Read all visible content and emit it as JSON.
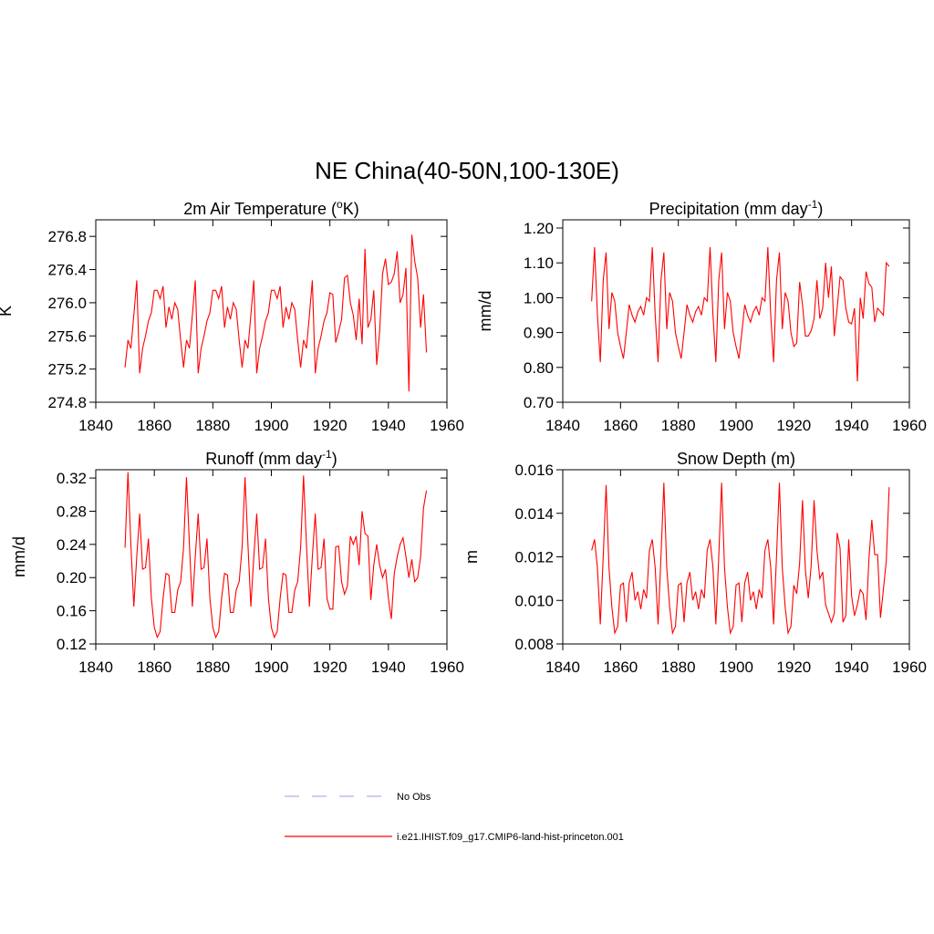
{
  "title": "NE China(40-50N,100-130E)",
  "legend": [
    {
      "name": "No Obs",
      "color": "#aab0f0",
      "style": "dashed"
    },
    {
      "name": "i.e21.IHIST.f09_g17.CMIP6-land-hist-princeton.001",
      "color": "#ff0000",
      "style": "solid"
    }
  ],
  "chart_data": [
    {
      "type": "line",
      "title": [
        "2m Air Temperature (",
        "o",
        "K)"
      ],
      "y_label": "K",
      "xlim": [
        1840,
        1960
      ],
      "xticks": [
        1840,
        1860,
        1880,
        1900,
        1920,
        1940,
        1960
      ],
      "ylim": [
        274.8,
        277.0
      ],
      "yticks": [
        274.8,
        275.2,
        275.6,
        {
          "value": 276.0,
          "label": "276.0"
        },
        276.4,
        276.8
      ],
      "x": [
        1850,
        1851,
        1852,
        1853,
        1854,
        1855,
        1856,
        1857,
        1858,
        1859,
        1860,
        1861,
        1862,
        1863,
        1864,
        1865,
        1866,
        1867,
        1868,
        1869,
        1870,
        1871,
        1872,
        1873,
        1874,
        1875,
        1876,
        1877,
        1878,
        1879,
        1880,
        1881,
        1882,
        1883,
        1884,
        1885,
        1886,
        1887,
        1888,
        1889,
        1890,
        1891,
        1892,
        1893,
        1894,
        1895,
        1896,
        1897,
        1898,
        1899,
        1900,
        1901,
        1902,
        1903,
        1904,
        1905,
        1906,
        1907,
        1908,
        1909,
        1910,
        1911,
        1912,
        1913,
        1914,
        1915,
        1916,
        1917,
        1918,
        1919,
        1920,
        1921,
        1922,
        1923,
        1924,
        1925,
        1926,
        1927,
        1928,
        1929,
        1930,
        1931,
        1932,
        1933,
        1934,
        1935,
        1936,
        1937,
        1938,
        1939,
        1940,
        1941,
        1942,
        1943,
        1944,
        1945,
        1946,
        1947,
        1948,
        1949,
        1950,
        1951,
        1952,
        1953
      ],
      "series": [
        {
          "color": "#ff0000",
          "values": [
            275.22,
            275.55,
            275.45,
            275.85,
            276.27,
            275.15,
            275.45,
            275.6,
            275.78,
            275.88,
            276.15,
            276.15,
            276.05,
            276.2,
            275.7,
            275.95,
            275.8,
            276.0,
            275.92,
            275.55,
            275.22,
            275.55,
            275.45,
            275.85,
            276.27,
            275.15,
            275.45,
            275.6,
            275.78,
            275.88,
            276.15,
            276.15,
            276.05,
            276.2,
            275.7,
            275.95,
            275.8,
            276.0,
            275.92,
            275.55,
            275.22,
            275.55,
            275.45,
            275.85,
            276.27,
            275.15,
            275.45,
            275.6,
            275.78,
            275.88,
            276.15,
            276.15,
            276.05,
            276.2,
            275.7,
            275.95,
            275.8,
            276.0,
            275.92,
            275.55,
            275.22,
            275.55,
            275.45,
            275.85,
            276.27,
            275.15,
            275.45,
            275.6,
            275.78,
            275.88,
            276.12,
            276.1,
            275.52,
            275.65,
            275.8,
            276.3,
            276.33,
            276.0,
            275.85,
            275.55,
            276.05,
            275.5,
            276.65,
            275.7,
            275.8,
            276.15,
            275.25,
            275.65,
            276.35,
            276.53,
            276.22,
            276.25,
            276.35,
            276.62,
            276.0,
            276.1,
            276.42,
            274.93,
            276.82,
            276.5,
            276.3,
            275.7,
            276.1,
            275.4
          ]
        }
      ]
    },
    {
      "type": "line",
      "title": [
        "Precipitation (mm day",
        "-1",
        ")"
      ],
      "y_label": "mm/d",
      "xlim": [
        1840,
        1960
      ],
      "xticks": [
        1840,
        1860,
        1880,
        1900,
        1920,
        1940,
        1960
      ],
      "ylim": [
        0.7,
        1.2236
      ],
      "yticks": [
        {
          "value": 0.7,
          "label": "0.70"
        },
        {
          "value": 0.8,
          "label": "0.80"
        },
        {
          "value": 0.9,
          "label": "0.90"
        },
        {
          "value": 1.0,
          "label": "1.00"
        },
        {
          "value": 1.1,
          "label": "1.10"
        },
        {
          "value": 1.2,
          "label": "1.20"
        }
      ],
      "x": [
        1850,
        1851,
        1852,
        1853,
        1854,
        1855,
        1856,
        1857,
        1858,
        1859,
        1860,
        1861,
        1862,
        1863,
        1864,
        1865,
        1866,
        1867,
        1868,
        1869,
        1870,
        1871,
        1872,
        1873,
        1874,
        1875,
        1876,
        1877,
        1878,
        1879,
        1880,
        1881,
        1882,
        1883,
        1884,
        1885,
        1886,
        1887,
        1888,
        1889,
        1890,
        1891,
        1892,
        1893,
        1894,
        1895,
        1896,
        1897,
        1898,
        1899,
        1900,
        1901,
        1902,
        1903,
        1904,
        1905,
        1906,
        1907,
        1908,
        1909,
        1910,
        1911,
        1912,
        1913,
        1914,
        1915,
        1916,
        1917,
        1918,
        1919,
        1920,
        1921,
        1922,
        1923,
        1924,
        1925,
        1926,
        1927,
        1928,
        1929,
        1930,
        1931,
        1932,
        1933,
        1934,
        1935,
        1936,
        1937,
        1938,
        1939,
        1940,
        1941,
        1942,
        1943,
        1944,
        1945,
        1946,
        1947,
        1948,
        1949,
        1950,
        1951,
        1952,
        1953
      ],
      "series": [
        {
          "color": "#ff0000",
          "values": [
            0.99,
            1.145,
            0.95,
            0.815,
            1.05,
            1.13,
            0.91,
            1.015,
            0.99,
            0.9,
            0.86,
            0.825,
            0.9,
            0.98,
            0.95,
            0.93,
            0.96,
            0.975,
            0.95,
            1.0,
            0.99,
            1.145,
            0.95,
            0.815,
            1.05,
            1.13,
            0.91,
            1.015,
            0.99,
            0.9,
            0.86,
            0.825,
            0.9,
            0.98,
            0.95,
            0.93,
            0.96,
            0.975,
            0.95,
            1.0,
            0.99,
            1.145,
            0.95,
            0.815,
            1.05,
            1.13,
            0.91,
            1.015,
            0.99,
            0.9,
            0.86,
            0.825,
            0.9,
            0.98,
            0.95,
            0.93,
            0.96,
            0.975,
            0.95,
            1.0,
            0.99,
            1.145,
            0.95,
            0.815,
            1.05,
            1.13,
            0.91,
            1.015,
            0.99,
            0.9,
            0.86,
            0.87,
            1.045,
            0.98,
            0.89,
            0.89,
            0.905,
            0.94,
            1.05,
            0.94,
            0.97,
            1.1,
            1.0,
            1.09,
            0.89,
            0.97,
            1.06,
            1.05,
            0.97,
            0.93,
            0.925,
            0.97,
            0.76,
            1.0,
            0.94,
            1.075,
            1.04,
            1.03,
            0.93,
            0.97,
            0.96,
            0.95,
            1.1,
            1.09
          ]
        }
      ]
    },
    {
      "type": "line",
      "title": [
        "Runoff (mm day",
        "-1",
        ")"
      ],
      "y_label": "mm/d",
      "xlim": [
        1840,
        1960
      ],
      "xticks": [
        1840,
        1860,
        1880,
        1900,
        1920,
        1940,
        1960
      ],
      "ylim": [
        0.12,
        0.33
      ],
      "yticks": [
        0.12,
        0.16,
        {
          "value": 0.2,
          "label": "0.20"
        },
        0.24,
        0.28,
        0.32
      ],
      "x": [
        1850,
        1851,
        1852,
        1853,
        1854,
        1855,
        1856,
        1857,
        1858,
        1859,
        1860,
        1861,
        1862,
        1863,
        1864,
        1865,
        1866,
        1867,
        1868,
        1869,
        1870,
        1871,
        1872,
        1873,
        1874,
        1875,
        1876,
        1877,
        1878,
        1879,
        1880,
        1881,
        1882,
        1883,
        1884,
        1885,
        1886,
        1887,
        1888,
        1889,
        1890,
        1891,
        1892,
        1893,
        1894,
        1895,
        1896,
        1897,
        1898,
        1899,
        1900,
        1901,
        1902,
        1903,
        1904,
        1905,
        1906,
        1907,
        1908,
        1909,
        1910,
        1911,
        1912,
        1913,
        1914,
        1915,
        1916,
        1917,
        1918,
        1919,
        1920,
        1921,
        1922,
        1923,
        1924,
        1925,
        1926,
        1927,
        1928,
        1929,
        1930,
        1931,
        1932,
        1933,
        1934,
        1935,
        1936,
        1937,
        1938,
        1939,
        1940,
        1941,
        1942,
        1943,
        1944,
        1945,
        1946,
        1947,
        1948,
        1949,
        1950,
        1951,
        1952,
        1953
      ],
      "series": [
        {
          "color": "#ff0000",
          "values": [
            0.236,
            0.327,
            0.24,
            0.165,
            0.225,
            0.277,
            0.21,
            0.212,
            0.247,
            0.175,
            0.14,
            0.128,
            0.135,
            0.175,
            0.205,
            0.203,
            0.158,
            0.158,
            0.185,
            0.195,
            0.236,
            0.321,
            0.24,
            0.165,
            0.225,
            0.277,
            0.21,
            0.212,
            0.247,
            0.175,
            0.14,
            0.128,
            0.135,
            0.175,
            0.205,
            0.203,
            0.158,
            0.158,
            0.185,
            0.195,
            0.236,
            0.321,
            0.24,
            0.165,
            0.225,
            0.277,
            0.21,
            0.212,
            0.247,
            0.175,
            0.14,
            0.128,
            0.135,
            0.175,
            0.205,
            0.203,
            0.158,
            0.158,
            0.185,
            0.195,
            0.236,
            0.323,
            0.24,
            0.165,
            0.225,
            0.277,
            0.21,
            0.212,
            0.247,
            0.175,
            0.162,
            0.162,
            0.237,
            0.238,
            0.195,
            0.18,
            0.19,
            0.25,
            0.24,
            0.25,
            0.215,
            0.28,
            0.253,
            0.25,
            0.173,
            0.215,
            0.24,
            0.215,
            0.2,
            0.21,
            0.175,
            0.15,
            0.205,
            0.225,
            0.24,
            0.248,
            0.225,
            0.2,
            0.222,
            0.195,
            0.2,
            0.225,
            0.284,
            0.305
          ]
        }
      ]
    },
    {
      "type": "line",
      "title": [
        "Snow Depth (m)"
      ],
      "y_label": "m",
      "xlim": [
        1840,
        1960
      ],
      "xticks": [
        1840,
        1860,
        1880,
        1900,
        1920,
        1940,
        1960
      ],
      "ylim": [
        0.008,
        0.016
      ],
      "yticks": [
        0.008,
        {
          "value": 0.01,
          "label": "0.010"
        },
        0.012,
        0.014,
        0.016
      ],
      "x": [
        1850,
        1851,
        1852,
        1853,
        1854,
        1855,
        1856,
        1857,
        1858,
        1859,
        1860,
        1861,
        1862,
        1863,
        1864,
        1865,
        1866,
        1867,
        1868,
        1869,
        1870,
        1871,
        1872,
        1873,
        1874,
        1875,
        1876,
        1877,
        1878,
        1879,
        1880,
        1881,
        1882,
        1883,
        1884,
        1885,
        1886,
        1887,
        1888,
        1889,
        1890,
        1891,
        1892,
        1893,
        1894,
        1895,
        1896,
        1897,
        1898,
        1899,
        1900,
        1901,
        1902,
        1903,
        1904,
        1905,
        1906,
        1907,
        1908,
        1909,
        1910,
        1911,
        1912,
        1913,
        1914,
        1915,
        1916,
        1917,
        1918,
        1919,
        1920,
        1921,
        1922,
        1923,
        1924,
        1925,
        1926,
        1927,
        1928,
        1929,
        1930,
        1931,
        1932,
        1933,
        1934,
        1935,
        1936,
        1937,
        1938,
        1939,
        1940,
        1941,
        1942,
        1943,
        1944,
        1945,
        1946,
        1947,
        1948,
        1949,
        1950,
        1951,
        1952,
        1953
      ],
      "series": [
        {
          "color": "#ff0000",
          "values": [
            0.0123,
            0.0128,
            0.0115,
            0.0089,
            0.012,
            0.0153,
            0.0115,
            0.0097,
            0.0085,
            0.0088,
            0.0107,
            0.0108,
            0.009,
            0.0108,
            0.0113,
            0.01,
            0.0104,
            0.0096,
            0.0105,
            0.0101,
            0.0123,
            0.0128,
            0.0115,
            0.0089,
            0.012,
            0.0154,
            0.0115,
            0.0097,
            0.0085,
            0.0088,
            0.0107,
            0.0108,
            0.009,
            0.0108,
            0.0113,
            0.01,
            0.0104,
            0.0096,
            0.0105,
            0.0101,
            0.0123,
            0.0128,
            0.0115,
            0.0089,
            0.012,
            0.0154,
            0.0115,
            0.0097,
            0.0085,
            0.0088,
            0.0107,
            0.0108,
            0.009,
            0.0108,
            0.0113,
            0.01,
            0.0104,
            0.0096,
            0.0105,
            0.0101,
            0.0123,
            0.0128,
            0.0115,
            0.0089,
            0.012,
            0.0154,
            0.0115,
            0.0097,
            0.0085,
            0.0088,
            0.0107,
            0.0103,
            0.0117,
            0.0146,
            0.0114,
            0.0101,
            0.0116,
            0.0146,
            0.0123,
            0.011,
            0.0113,
            0.0098,
            0.0094,
            0.009,
            0.0094,
            0.0131,
            0.0124,
            0.009,
            0.0093,
            0.0128,
            0.0102,
            0.0093,
            0.0098,
            0.0105,
            0.0103,
            0.0091,
            0.0119,
            0.0137,
            0.0121,
            0.0121,
            0.0092,
            0.0105,
            0.0118,
            0.0152
          ]
        }
      ]
    }
  ]
}
